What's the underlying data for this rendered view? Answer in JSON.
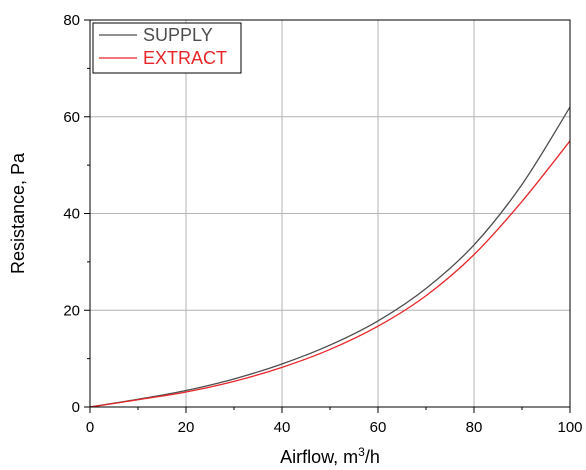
{
  "chart_data": {
    "type": "line",
    "xlabel": "Airflow, m³/h",
    "ylabel": "Resistance, Pa",
    "xlim": [
      0,
      100
    ],
    "ylim": [
      0,
      80
    ],
    "x_ticks": [
      0,
      20,
      40,
      60,
      80,
      100
    ],
    "y_ticks": [
      0,
      20,
      40,
      60,
      80
    ],
    "x_minor_step": 10,
    "y_minor_step": 10,
    "grid": true,
    "legend_position": "top-left",
    "series": [
      {
        "name": "SUPPLY",
        "color": "#4d4d4d",
        "x": [
          0,
          10,
          20,
          30,
          40,
          50,
          60,
          70,
          80,
          90,
          100
        ],
        "y": [
          0,
          1.6,
          3.4,
          5.8,
          8.9,
          12.8,
          17.8,
          24.5,
          33.5,
          46.0,
          62.0
        ]
      },
      {
        "name": "EXTRACT",
        "color": "#e8262a",
        "x": [
          0,
          10,
          20,
          30,
          40,
          50,
          60,
          70,
          80,
          90,
          100
        ],
        "y": [
          0,
          1.5,
          3.1,
          5.3,
          8.2,
          11.9,
          16.7,
          23.0,
          31.5,
          42.5,
          55.0
        ]
      }
    ]
  }
}
